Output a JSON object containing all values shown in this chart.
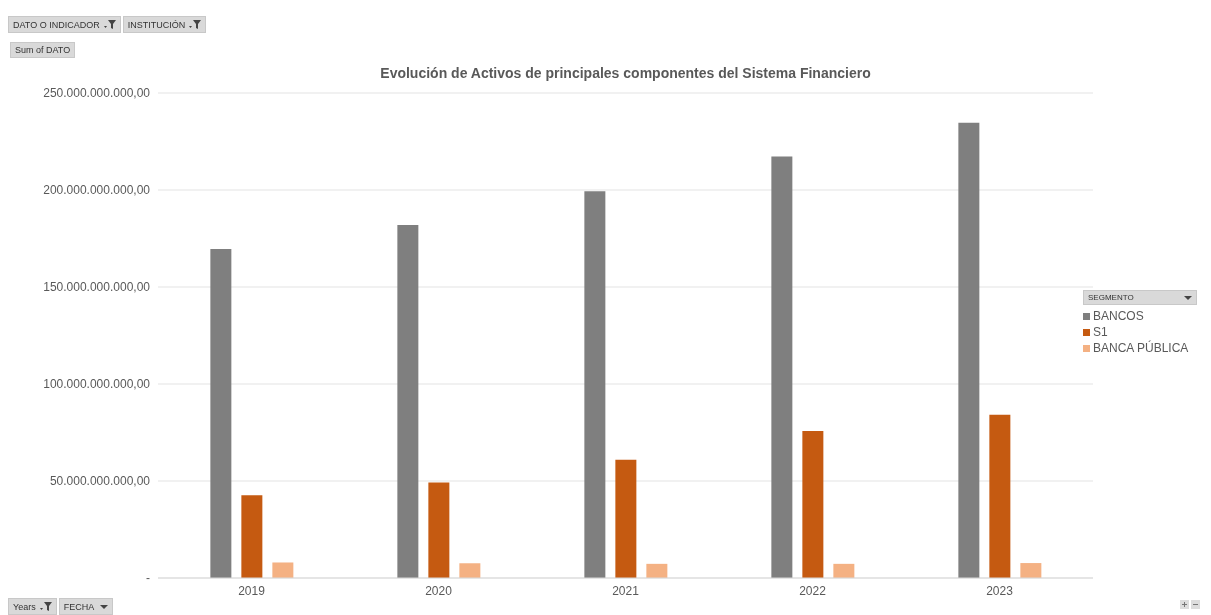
{
  "chart_data": {
    "type": "bar",
    "title": "Evolución de Activos de principales componentes del Sistema Financiero",
    "categories": [
      "2019",
      "2020",
      "2021",
      "2022",
      "2023"
    ],
    "series": [
      {
        "name": "BANCOS",
        "color": "#7f7f7f",
        "values": [
          169600000000,
          182000000000,
          199300000000,
          217300000000,
          234700000000
        ]
      },
      {
        "name": "S1",
        "color": "#c55a11",
        "values": [
          42600000000,
          49200000000,
          60900000000,
          75800000000,
          84100000000
        ]
      },
      {
        "name": "BANCA PÚBLICA",
        "color": "#f4b183",
        "values": [
          8000000000,
          7600000000,
          7300000000,
          7300000000,
          7700000000
        ]
      }
    ],
    "ylim": [
      0,
      250000000000
    ],
    "yticks": [
      {
        "value": 0,
        "label": "-"
      },
      {
        "value": 50000000000,
        "label": "50.000.000.000,00"
      },
      {
        "value": 100000000000,
        "label": "100.000.000.000,00"
      },
      {
        "value": 150000000000,
        "label": "150.000.000.000,00"
      },
      {
        "value": 200000000000,
        "label": "200.000.000.000,00"
      },
      {
        "value": 250000000000,
        "label": "250.000.000.000,00"
      }
    ],
    "grid": "y",
    "legend": "right",
    "legend_title": "SEGMENTO",
    "annotations": [
      "DATO O INDICADOR",
      "INSTITUCIÓN",
      "Sum of DATO",
      "Years",
      "FECHA"
    ]
  }
}
